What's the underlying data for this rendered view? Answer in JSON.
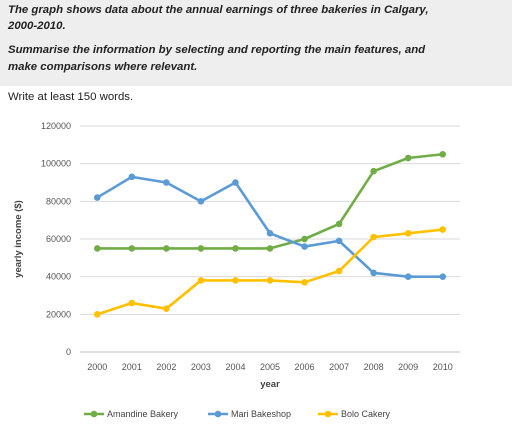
{
  "prompt": {
    "line1": "The graph shows data about the annual earnings of three bakeries in Calgary,",
    "line2": "2000-2010.",
    "line3": "Summarise the information by selecting and reporting the main features, and",
    "line4": "make comparisons where relevant."
  },
  "instruction": "Write at least 150 words.",
  "chart_data": {
    "type": "line",
    "title": "",
    "xlabel": "year",
    "ylabel": "yearly income ($)",
    "ylim": [
      0,
      120000
    ],
    "yticks": [
      0,
      20000,
      40000,
      60000,
      80000,
      100000,
      120000
    ],
    "x": [
      "2000",
      "2001",
      "2002",
      "2003",
      "2004",
      "2005",
      "2006",
      "2007",
      "2008",
      "2009",
      "2010"
    ],
    "grid": "horizontal",
    "legend_position": "bottom",
    "series": [
      {
        "name": "Amandine Bakery",
        "color": "#70ad47",
        "values": [
          55000,
          55000,
          55000,
          55000,
          55000,
          55000,
          60000,
          68000,
          96000,
          103000,
          105000
        ]
      },
      {
        "name": "Mari Bakeshop",
        "color": "#5b9bd5",
        "values": [
          82000,
          93000,
          90000,
          80000,
          90000,
          63000,
          56000,
          59000,
          42000,
          40000,
          40000
        ]
      },
      {
        "name": "Bolo Cakery",
        "color": "#ffc000",
        "values": [
          20000,
          26000,
          23000,
          38000,
          38000,
          38000,
          37000,
          43000,
          61000,
          63000,
          65000
        ]
      }
    ]
  }
}
